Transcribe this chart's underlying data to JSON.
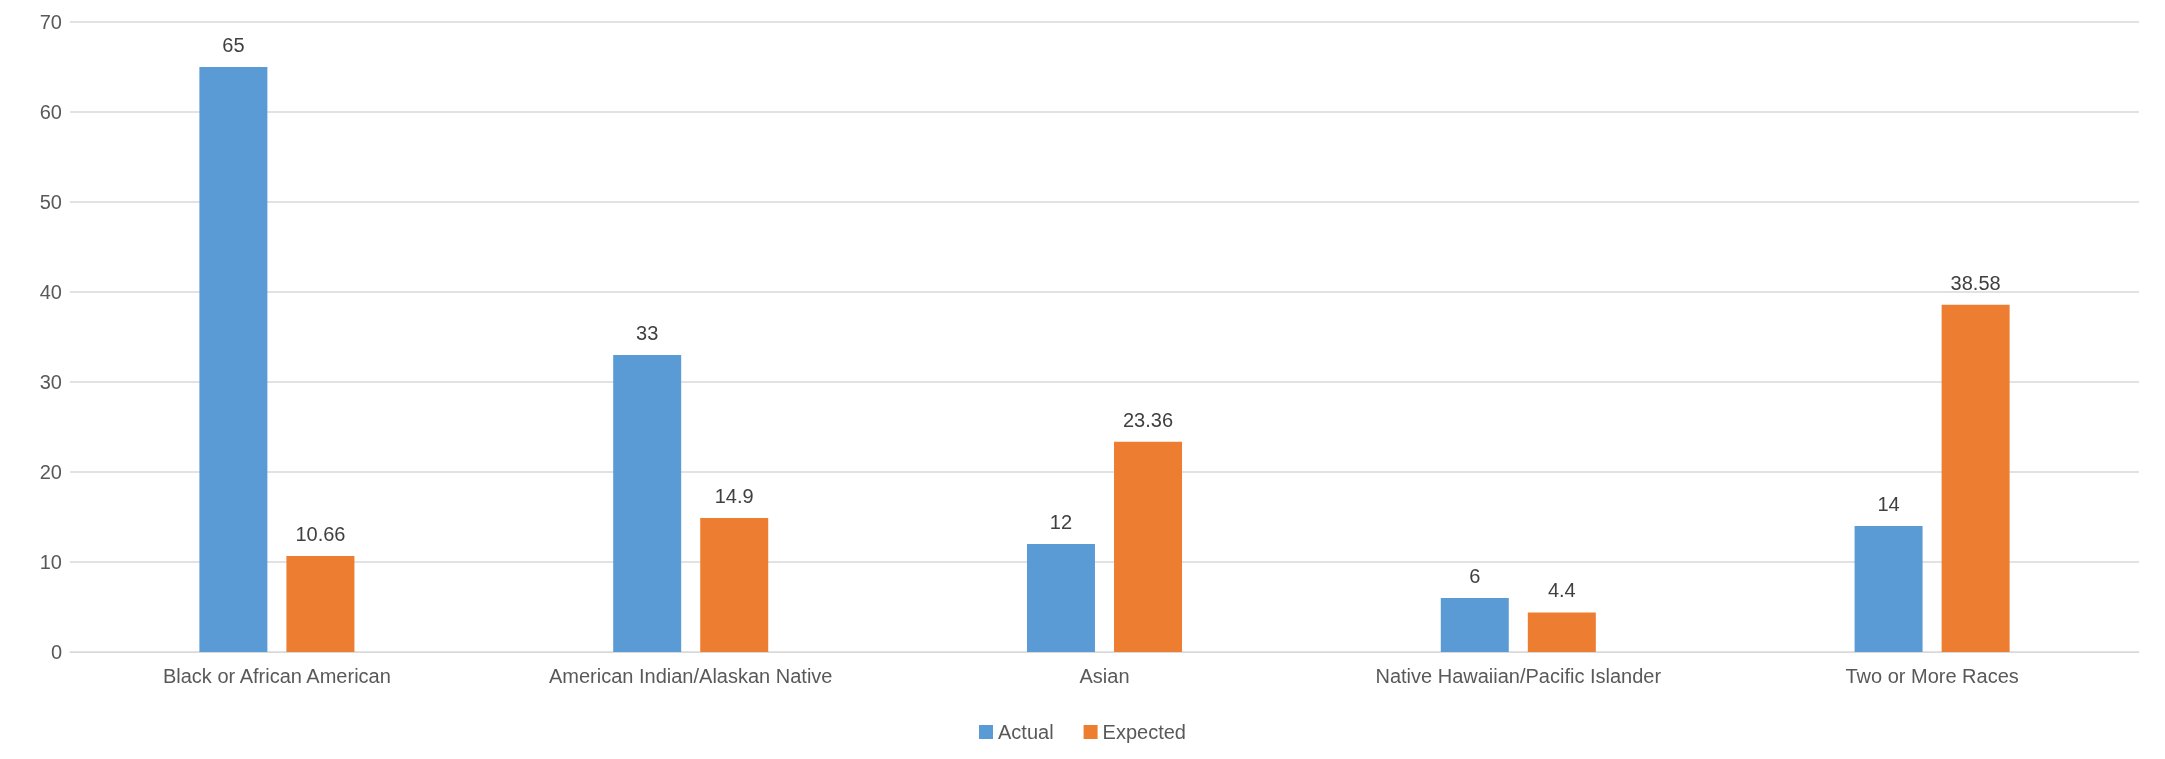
{
  "chart_data": {
    "type": "bar",
    "categories": [
      "Black or African American",
      "American Indian/Alaskan Native",
      "Asian",
      "Native Hawaiian/Pacific Islander",
      "Two or More Races"
    ],
    "series": [
      {
        "name": "Actual",
        "color": "#5b9bd5",
        "values": [
          65,
          33,
          12,
          6,
          14
        ]
      },
      {
        "name": "Expected",
        "color": "#ed7d31",
        "values": [
          10.66,
          14.9,
          23.36,
          4.4,
          38.58
        ]
      }
    ],
    "ylim": [
      0,
      70
    ],
    "yticks": [
      0,
      10,
      20,
      30,
      40,
      50,
      60,
      70
    ],
    "grid": "y",
    "legend": "bottom",
    "data_labels": true
  }
}
